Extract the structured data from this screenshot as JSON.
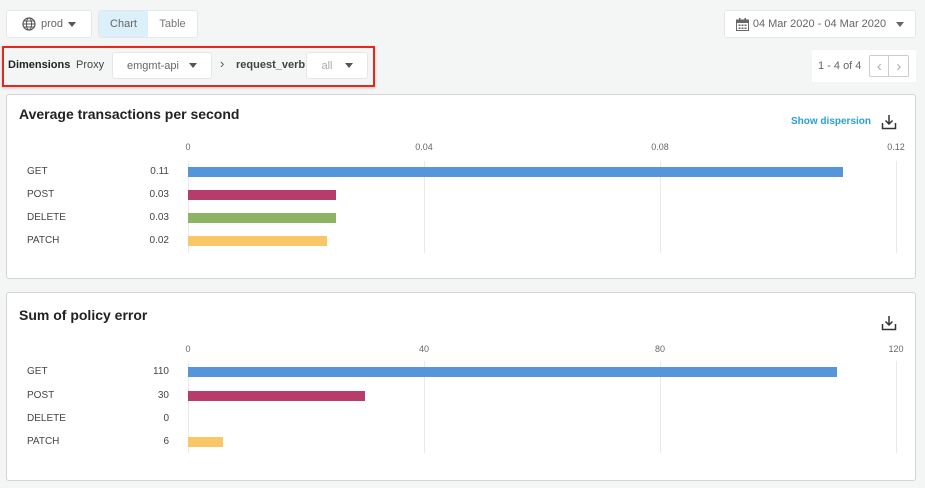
{
  "toolbar": {
    "env": "prod",
    "env_icon": "globe-icon",
    "view_tabs": [
      {
        "label": "Chart",
        "active": true
      },
      {
        "label": "Table",
        "active": false
      }
    ],
    "date_range": "04 Mar 2020 - 04 Mar 2020"
  },
  "dimensions": {
    "label": "Dimensions",
    "proxy_label": "Proxy",
    "proxy_value": "emgmt-api",
    "sub_dimension": "request_verb",
    "sub_value": "all",
    "highlight_color": "#e8261c"
  },
  "pagination": {
    "text": "1 - 4 of 4"
  },
  "colors": {
    "GET": "#5596da",
    "POST": "#b73c6c",
    "DELETE": "#8db364",
    "PATCH": "#fac766"
  },
  "chart_data": [
    {
      "type": "bar",
      "title": "Average transactions per second",
      "action": "Show dispersion",
      "categories": [
        "GET",
        "POST",
        "DELETE",
        "PATCH"
      ],
      "values": [
        0.111,
        0.025,
        0.025,
        0.0235
      ],
      "value_labels": [
        "0.11",
        "0.03",
        "0.03",
        "0.02"
      ],
      "xlim": [
        0,
        0.12
      ],
      "ticks": [
        "0",
        "0.04",
        "0.08",
        "0.12"
      ],
      "tick_values": [
        0,
        0.04,
        0.08,
        0.12
      ],
      "grid": true
    },
    {
      "type": "bar",
      "title": "Sum of policy error",
      "categories": [
        "GET",
        "POST",
        "DELETE",
        "PATCH"
      ],
      "values": [
        110,
        30,
        0,
        6
      ],
      "value_labels": [
        "110",
        "30",
        "0",
        "6"
      ],
      "xlim": [
        0,
        120
      ],
      "ticks": [
        "0",
        "40",
        "80",
        "120"
      ],
      "tick_values": [
        0,
        40,
        80,
        120
      ],
      "grid": true
    }
  ]
}
